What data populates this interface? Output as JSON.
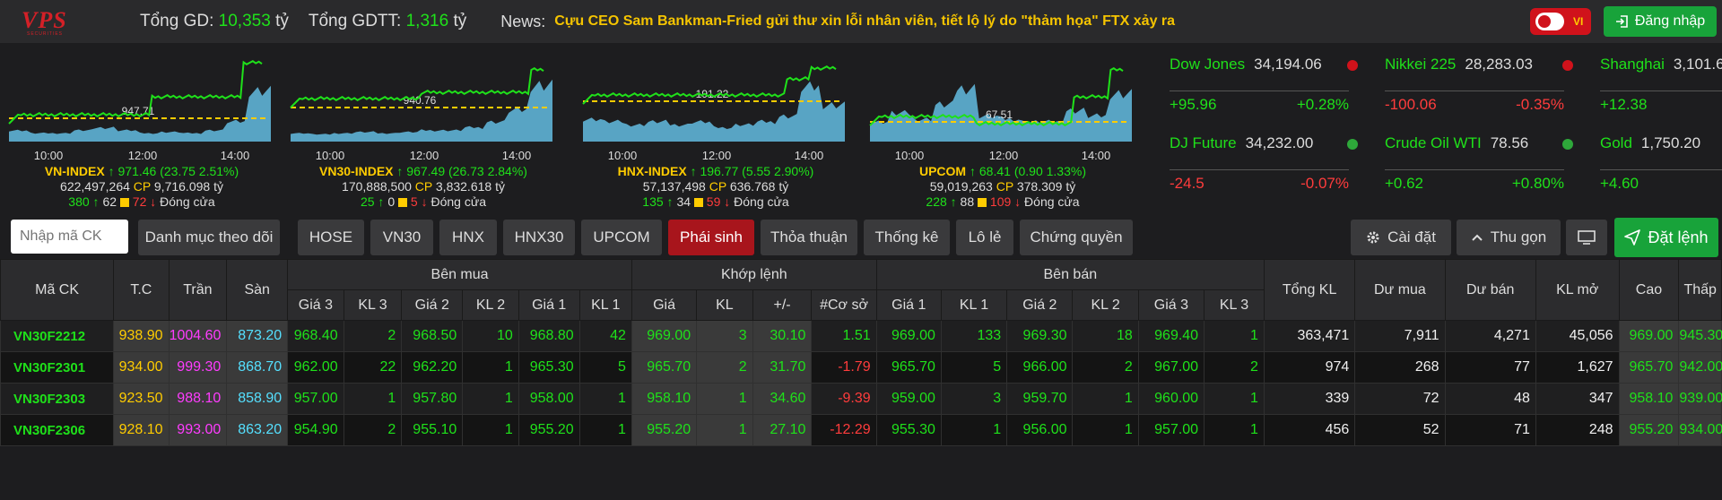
{
  "header": {
    "logo_text": "VPS",
    "logo_sub": "SECURITIES",
    "tong_gd_label": "Tổng GD:",
    "tong_gd_value": "10,353",
    "tong_gd_unit": "tỷ",
    "tong_gdtt_label": "Tổng GDTT:",
    "tong_gdtt_value": "1,316",
    "tong_gdtt_unit": "tỷ",
    "news_label": "News:",
    "news_text": "Cựu CEO Sam Bankman-Fried gửi thư xin lỗi nhân viên, tiết lộ lý do \"thảm họa\" FTX xảy ra",
    "lang_label": "VI",
    "login_label": "Đăng nhập"
  },
  "indices": [
    {
      "name": "VN-INDEX",
      "value": "971.46",
      "change": "(23.75  2.51%)",
      "ref": "947.71",
      "volume": "622,497,264",
      "cp": "CP",
      "value_traded": "9,716.098 tỷ",
      "up": "380",
      "ref_cnt": "62",
      "down": "72",
      "status": "Đóng cửa",
      "ticks": [
        "10:00",
        "12:00",
        "14:00"
      ]
    },
    {
      "name": "VN30-INDEX",
      "value": "967.49",
      "change": "(26.73  2.84%)",
      "ref": "940.76",
      "volume": "170,888,500",
      "cp": "CP",
      "value_traded": "3,832.618 tỷ",
      "up": "25",
      "ref_cnt": "0",
      "down": "5",
      "status": "Đóng cửa",
      "ticks": [
        "10:00",
        "12:00",
        "14:00"
      ]
    },
    {
      "name": "HNX-INDEX",
      "value": "196.77",
      "change": "(5.55  2.90%)",
      "ref": "191.22",
      "volume": "57,137,498",
      "cp": "CP",
      "value_traded": "636.768 tỷ",
      "up": "135",
      "ref_cnt": "34",
      "down": "59",
      "status": "Đóng cửa",
      "ticks": [
        "10:00",
        "12:00",
        "14:00"
      ]
    },
    {
      "name": "UPCOM",
      "value": "68.41",
      "change": "(0.90  1.33%)",
      "ref": "67.51",
      "volume": "59,019,263",
      "cp": "CP",
      "value_traded": "378.309 tỷ",
      "up": "228",
      "ref_cnt": "88",
      "down": "109",
      "status": "Đóng cửa",
      "ticks": [
        "10:00",
        "12:00",
        "14:00"
      ]
    }
  ],
  "world": [
    {
      "name": "Dow Jones",
      "value": "34,194.06",
      "change": "+95.96",
      "pct": "+0.28%",
      "dir": "up",
      "clock": "#d0121b"
    },
    {
      "name": "Nikkei 225",
      "value": "28,283.03",
      "change": "-100.06",
      "pct": "-0.35%",
      "dir": "down",
      "clock": "#d0121b"
    },
    {
      "name": "Shanghai",
      "value": "3,101.6",
      "change": "+12.38",
      "pct": "",
      "dir": "up",
      "clock": ""
    },
    {
      "name": "DJ Future",
      "value": "34,232.00",
      "change": "-24.5",
      "pct": "-0.07%",
      "dir": "down",
      "clock": "#2ea83a"
    },
    {
      "name": "Crude Oil WTI",
      "value": "78.56",
      "change": "+0.62",
      "pct": "+0.80%",
      "dir": "up",
      "clock": "#2ea83a"
    },
    {
      "name": "Gold",
      "value": "1,750.20",
      "change": "+4.60",
      "pct": "",
      "dir": "up",
      "clock": ""
    }
  ],
  "toolbar": {
    "search_placeholder": "Nhập mã CK",
    "tabs": [
      "Danh mục theo dõi",
      "HOSE",
      "VN30",
      "HNX",
      "HNX30",
      "UPCOM",
      "Phái sinh",
      "Thỏa thuận",
      "Thống kê",
      "Lô lẻ",
      "Chứng quyền"
    ],
    "settings": "Cài đặt",
    "collapse": "Thu gọn",
    "order": "Đặt lệnh"
  },
  "table": {
    "h_ma": "Mã CK",
    "h_tc": "T.C",
    "h_tran": "Trần",
    "h_san": "Sàn",
    "h_benmua": "Bên mua",
    "h_khop": "Khớp lệnh",
    "h_benban": "Bên bán",
    "h_tongkl": "Tổng KL",
    "h_dumua": "Dư mua",
    "h_duban": "Dư bán",
    "h_klmo": "KL mở",
    "h_cao": "Cao",
    "h_thap": "Thấp",
    "h_gia3": "Giá 3",
    "h_kl3": "KL 3",
    "h_gia2": "Giá 2",
    "h_kl2": "KL 2",
    "h_gia1": "Giá 1",
    "h_kl1": "KL 1",
    "h_gia": "Giá",
    "h_kl": "KL",
    "h_pm": "+/-",
    "h_coso": "#Cơ sở",
    "rows": [
      {
        "sym": "VN30F2212",
        "tc": "938.90",
        "tran": "1004.60",
        "san": "873.20",
        "bg3": "968.40",
        "bk3": "2",
        "bg2": "968.50",
        "bk2": "10",
        "bg1": "968.80",
        "bk1": "42",
        "mg": "969.00",
        "mk": "3",
        "mpm": "30.10",
        "coso": "1.51",
        "sg1": "969.00",
        "sk1": "133",
        "sg2": "969.30",
        "sk2": "18",
        "sg3": "969.40",
        "sk3": "1",
        "tkl": "363,471",
        "dm": "7,911",
        "db": "4,271",
        "klmo": "45,056",
        "cao": "969.00",
        "thap": "945.30"
      },
      {
        "sym": "VN30F2301",
        "tc": "934.00",
        "tran": "999.30",
        "san": "868.70",
        "bg3": "962.00",
        "bk3": "22",
        "bg2": "962.20",
        "bk2": "1",
        "bg1": "965.30",
        "bk1": "5",
        "mg": "965.70",
        "mk": "2",
        "mpm": "31.70",
        "coso": "-1.79",
        "sg1": "965.70",
        "sk1": "5",
        "sg2": "966.00",
        "sk2": "2",
        "sg3": "967.00",
        "sk3": "2",
        "tkl": "974",
        "dm": "268",
        "db": "77",
        "klmo": "1,627",
        "cao": "965.70",
        "thap": "942.00"
      },
      {
        "sym": "VN30F2303",
        "tc": "923.50",
        "tran": "988.10",
        "san": "858.90",
        "bg3": "957.00",
        "bk3": "1",
        "bg2": "957.80",
        "bk2": "1",
        "bg1": "958.00",
        "bk1": "1",
        "mg": "958.10",
        "mk": "1",
        "mpm": "34.60",
        "coso": "-9.39",
        "sg1": "959.00",
        "sk1": "3",
        "sg2": "959.70",
        "sk2": "1",
        "sg3": "960.00",
        "sk3": "1",
        "tkl": "339",
        "dm": "72",
        "db": "48",
        "klmo": "347",
        "cao": "958.10",
        "thap": "939.00"
      },
      {
        "sym": "VN30F2306",
        "tc": "928.10",
        "tran": "993.00",
        "san": "863.20",
        "bg3": "954.90",
        "bk3": "2",
        "bg2": "955.10",
        "bk2": "1",
        "bg1": "955.20",
        "bk1": "1",
        "mg": "955.20",
        "mk": "1",
        "mpm": "27.10",
        "coso": "-12.29",
        "sg1": "955.30",
        "sk1": "1",
        "sg2": "956.00",
        "sk2": "1",
        "sg3": "957.00",
        "sk3": "1",
        "tkl": "456",
        "dm": "52",
        "db": "71",
        "klmo": "248",
        "cao": "955.20",
        "thap": "934.00"
      }
    ]
  }
}
